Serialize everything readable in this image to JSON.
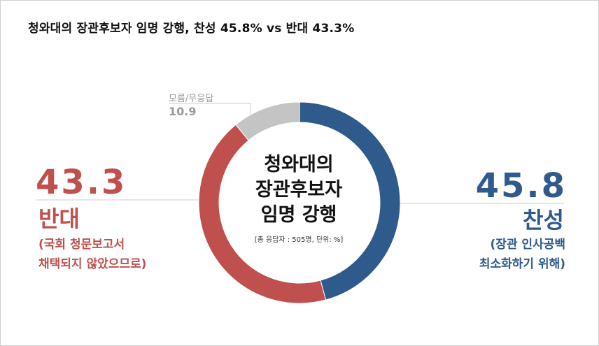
{
  "chart_data": {
    "type": "pie",
    "title": "청와대의 장관후보자 임명 강행, 찬성 45.8% vs 반대 43.3%",
    "center_text": [
      "청와대의",
      "장관후보자",
      "임명 강행"
    ],
    "note": "[총 응답자 : 505명, 단위: %]",
    "slices": [
      {
        "label": "찬성",
        "value": 45.8,
        "value_text": "45.8",
        "sub": [
          "(장관 인사공백",
          "최소화하기 위해)"
        ],
        "color": "#2f5a8c"
      },
      {
        "label": "반대",
        "value": 43.3,
        "value_text": "43.3",
        "sub": [
          "(국회 청문보고서",
          "채택되지 않았으므로)"
        ],
        "color": "#c0504d"
      },
      {
        "label": "모름/무응답",
        "value": 10.9,
        "value_text": "10.9",
        "color": "#c4c4c4"
      }
    ]
  }
}
